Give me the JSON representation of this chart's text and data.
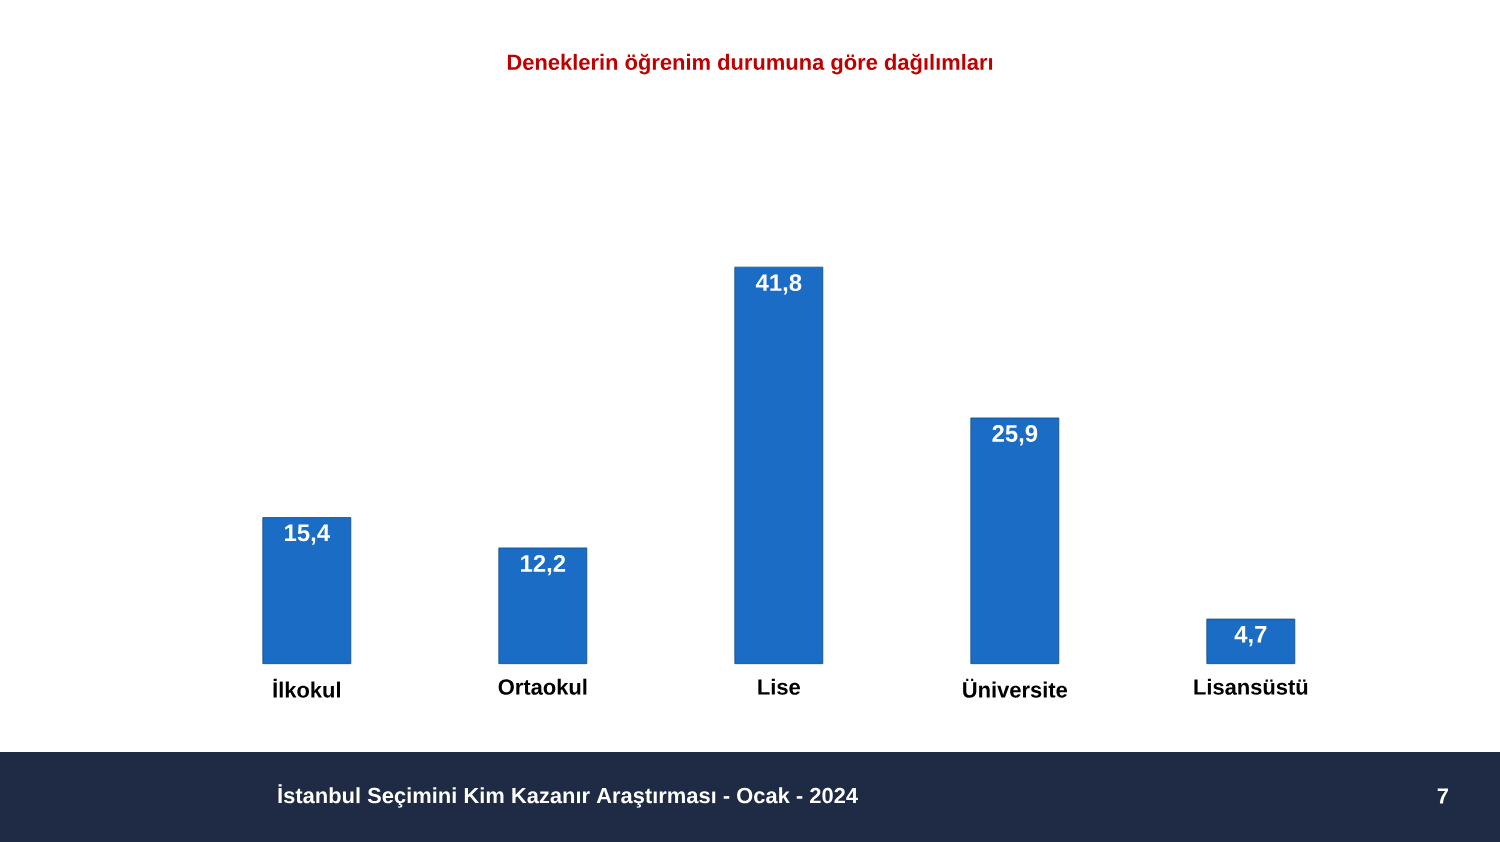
{
  "chart_data": {
    "type": "bar",
    "title": "Deneklerin öğrenim durumuna göre dağılımları",
    "categories": [
      "İlkokul",
      "Ortaokul",
      "Lise",
      "Üniversite",
      "Lisansüstü"
    ],
    "values": [
      15.4,
      12.2,
      41.8,
      25.9,
      4.7
    ],
    "value_labels": [
      "15,4",
      "12,2",
      "41,8",
      "25,9",
      "4,7"
    ],
    "color": "#1a6cc4",
    "annotations": [
      "İstanbul Seçimini Kim Kazanır Araştırması - Ocak - 2024",
      "7"
    ]
  }
}
